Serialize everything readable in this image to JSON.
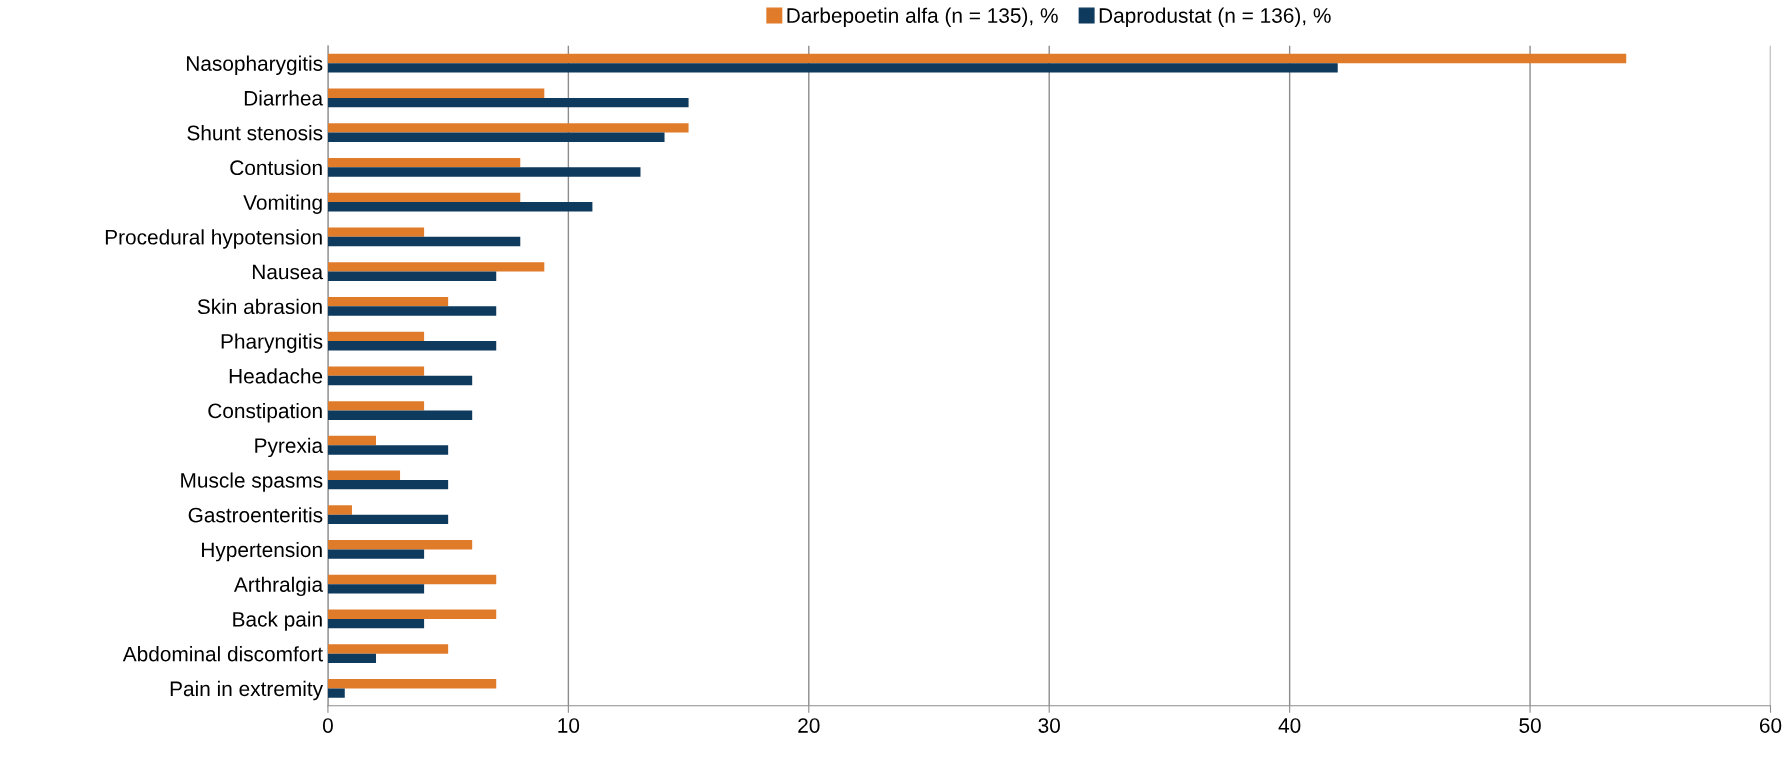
{
  "chart_data": {
    "type": "bar",
    "orientation": "horizontal",
    "categories": [
      "Nasopharygitis",
      "Diarrhea",
      "Shunt stenosis",
      "Contusion",
      "Vomiting",
      "Procedural hypotension",
      "Nausea",
      "Skin abrasion",
      "Pharyngitis",
      "Headache",
      "Constipation",
      "Pyrexia",
      "Muscle spasms",
      "Gastroenteritis",
      "Hypertension",
      "Arthralgia",
      "Back pain",
      "Abdominal discomfort",
      "Pain in extremity"
    ],
    "series": [
      {
        "name": "Darbepoetin alfa (n = 135), %",
        "color": "#e07b2a",
        "values": [
          54,
          9,
          15,
          8,
          8,
          4,
          9,
          5,
          4,
          4,
          4,
          2,
          3,
          1,
          6,
          7,
          7,
          5,
          7
        ]
      },
      {
        "name": "Daprodustat (n = 136), %",
        "color": "#0e3a5e",
        "values": [
          42,
          15,
          14,
          13,
          11,
          8,
          7,
          7,
          7,
          6,
          6,
          5,
          5,
          5,
          4,
          4,
          4,
          2,
          0.7
        ]
      }
    ],
    "xlim": [
      0,
      60
    ],
    "xticks": [
      0,
      10,
      20,
      30,
      40,
      50,
      60
    ],
    "grid": "x",
    "legend": "top"
  }
}
